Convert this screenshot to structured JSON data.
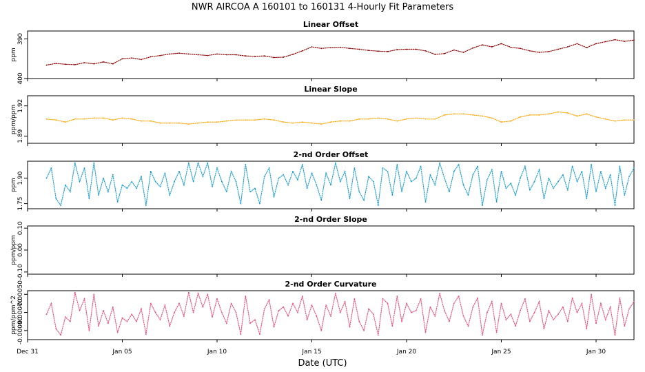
{
  "figure": {
    "title": "NWR   AIRCOA A   160101 to 160131   4-Hourly Fit Parameters",
    "xlabel": "Date (UTC)",
    "xticks": [
      "Dec 31",
      "Jan 05",
      "Jan 10",
      "Jan 15",
      "Jan 20",
      "Jan 25",
      "Jan 30"
    ]
  },
  "chart_data": [
    {
      "type": "line",
      "title": "Linear Offset",
      "ylabel": "ppm",
      "yticks": [
        "390",
        "400"
      ],
      "ylim": [
        400,
        388
      ],
      "x_range_days": [
        0,
        32
      ],
      "color": "#8b0000",
      "series": [
        {
          "name": "Linear Offset",
          "x": [
            1.0,
            1.5,
            2.0,
            2.5,
            3.0,
            3.5,
            4.0,
            4.5,
            5.0,
            5.5,
            6.0,
            6.5,
            7.0,
            7.5,
            8.0,
            8.5,
            9.0,
            9.5,
            10.0,
            10.5,
            11.0,
            11.5,
            12.0,
            12.5,
            13.0,
            13.5,
            14.0,
            14.5,
            15.0,
            15.5,
            16.0,
            16.5,
            17.0,
            17.5,
            18.0,
            18.5,
            19.0,
            19.5,
            20.0,
            20.5,
            21.0,
            21.5,
            22.0,
            22.5,
            23.0,
            23.5,
            24.0,
            24.5,
            25.0,
            25.5,
            26.0,
            26.5,
            27.0,
            27.5,
            28.0,
            28.5,
            29.0,
            29.5,
            30.0,
            30.5,
            31.0,
            31.5,
            32.0
          ],
          "values": [
            396.6,
            396.2,
            396.4,
            396.5,
            396.0,
            396.3,
            395.8,
            396.3,
            395.0,
            394.8,
            395.2,
            394.5,
            394.2,
            393.8,
            393.6,
            393.8,
            394.0,
            394.2,
            393.8,
            394.0,
            394.0,
            394.3,
            394.4,
            394.3,
            394.7,
            394.6,
            393.9,
            393.0,
            392.0,
            392.4,
            392.2,
            392.1,
            392.4,
            392.6,
            392.9,
            393.1,
            393.2,
            392.7,
            392.6,
            392.6,
            393.0,
            393.9,
            393.7,
            392.8,
            393.4,
            392.3,
            391.5,
            392.0,
            391.2,
            392.1,
            392.4,
            393.0,
            393.4,
            393.2,
            392.6,
            392.0,
            391.2,
            392.2,
            391.2,
            390.7,
            390.2,
            390.6,
            390.3
          ]
        }
      ]
    },
    {
      "type": "line",
      "title": "Linear Slope",
      "ylabel": "ppm/ppm",
      "yticks": [
        "1.89",
        "1.92"
      ],
      "ylim": [
        1.883,
        1.93
      ],
      "x_range_days": [
        0,
        32
      ],
      "color": "#ffa500",
      "series": [
        {
          "name": "Linear Slope",
          "x": [
            1.0,
            1.5,
            2.0,
            2.5,
            3.0,
            3.5,
            4.0,
            4.5,
            5.0,
            5.5,
            6.0,
            6.5,
            7.0,
            7.5,
            8.0,
            8.5,
            9.0,
            9.5,
            10.0,
            10.5,
            11.0,
            11.5,
            12.0,
            12.5,
            13.0,
            13.5,
            14.0,
            14.5,
            15.0,
            15.5,
            16.0,
            16.5,
            17.0,
            17.5,
            18.0,
            18.5,
            19.0,
            19.5,
            20.0,
            20.5,
            21.0,
            21.5,
            22.0,
            22.5,
            23.0,
            23.5,
            24.0,
            24.5,
            25.0,
            25.5,
            26.0,
            26.5,
            27.0,
            27.5,
            28.0,
            28.5,
            29.0,
            29.5,
            30.0,
            30.5,
            31.0,
            31.5,
            32.0
          ],
          "values": [
            1.907,
            1.906,
            1.904,
            1.907,
            1.907,
            1.908,
            1.908,
            1.906,
            1.908,
            1.907,
            1.905,
            1.905,
            1.903,
            1.903,
            1.903,
            1.902,
            1.903,
            1.904,
            1.904,
            1.905,
            1.906,
            1.906,
            1.906,
            1.907,
            1.906,
            1.904,
            1.903,
            1.904,
            1.903,
            1.902,
            1.904,
            1.905,
            1.905,
            1.907,
            1.907,
            1.908,
            1.907,
            1.905,
            1.907,
            1.908,
            1.907,
            1.907,
            1.911,
            1.912,
            1.912,
            1.911,
            1.91,
            1.908,
            1.904,
            1.905,
            1.909,
            1.911,
            1.911,
            1.912,
            1.914,
            1.913,
            1.91,
            1.912,
            1.909,
            1.907,
            1.905,
            1.906,
            1.906
          ]
        }
      ]
    },
    {
      "type": "line",
      "title": "2-nd Order Offset",
      "ylabel": "ppm",
      "yticks": [
        "1.75",
        "1.90"
      ],
      "ylim": [
        1.72,
        2.0
      ],
      "x_range_days": [
        0,
        32
      ],
      "color": "#1e9fd2",
      "series": [
        {
          "name": "2-nd Order Offset",
          "x": [
            1.0,
            1.25,
            1.5,
            1.75,
            2.0,
            2.25,
            2.5,
            2.75,
            3.0,
            3.25,
            3.5,
            3.75,
            4.0,
            4.25,
            4.5,
            4.75,
            5.0,
            5.25,
            5.5,
            5.75,
            6.0,
            6.25,
            6.5,
            6.75,
            7.0,
            7.25,
            7.5,
            7.75,
            8.0,
            8.25,
            8.5,
            8.75,
            9.0,
            9.25,
            9.5,
            9.75,
            10.0,
            10.25,
            10.5,
            10.75,
            11.0,
            11.25,
            11.5,
            11.75,
            12.0,
            12.25,
            12.5,
            12.75,
            13.0,
            13.25,
            13.5,
            13.75,
            14.0,
            14.25,
            14.5,
            14.75,
            15.0,
            15.25,
            15.5,
            15.75,
            16.0,
            16.25,
            16.5,
            16.75,
            17.0,
            17.25,
            17.5,
            17.75,
            18.0,
            18.25,
            18.5,
            18.75,
            19.0,
            19.25,
            19.5,
            19.75,
            20.0,
            20.25,
            20.5,
            20.75,
            21.0,
            21.25,
            21.5,
            21.75,
            22.0,
            22.25,
            22.5,
            22.75,
            23.0,
            23.25,
            23.5,
            23.75,
            24.0,
            24.25,
            24.5,
            24.75,
            25.0,
            25.25,
            25.5,
            25.75,
            26.0,
            26.25,
            26.5,
            26.75,
            27.0,
            27.25,
            27.5,
            27.75,
            28.0,
            28.25,
            28.5,
            28.75,
            29.0,
            29.25,
            29.5,
            29.75,
            30.0,
            30.25,
            30.5,
            30.75,
            31.0,
            31.25,
            31.5,
            31.75,
            32.0
          ],
          "values": [
            1.9,
            1.96,
            1.78,
            1.74,
            1.86,
            1.82,
            1.99,
            1.88,
            1.96,
            1.78,
            1.99,
            1.8,
            1.9,
            1.82,
            1.92,
            1.76,
            1.86,
            1.84,
            1.88,
            1.84,
            1.91,
            1.74,
            1.94,
            1.88,
            1.85,
            1.93,
            1.8,
            1.88,
            1.94,
            1.86,
            1.99,
            1.88,
            1.99,
            1.91,
            1.99,
            1.85,
            1.96,
            1.88,
            1.82,
            1.94,
            1.88,
            1.75,
            1.98,
            1.82,
            1.84,
            1.75,
            1.91,
            1.96,
            1.79,
            1.9,
            1.92,
            1.86,
            1.94,
            1.89,
            1.98,
            1.84,
            1.93,
            1.86,
            1.77,
            1.93,
            1.86,
            1.99,
            1.88,
            1.94,
            1.78,
            1.96,
            1.82,
            1.77,
            1.91,
            1.88,
            1.74,
            1.96,
            1.94,
            1.8,
            1.98,
            1.82,
            1.94,
            1.88,
            1.9,
            1.97,
            1.76,
            1.92,
            1.86,
            1.99,
            1.9,
            1.82,
            1.94,
            1.98,
            1.86,
            1.8,
            1.92,
            1.97,
            1.74,
            1.89,
            1.95,
            1.76,
            1.94,
            1.84,
            1.87,
            1.8,
            1.9,
            1.97,
            1.83,
            1.88,
            1.95,
            1.78,
            1.9,
            1.84,
            1.88,
            1.92,
            1.83,
            1.97,
            1.88,
            1.94,
            1.78,
            1.98,
            1.82,
            1.94,
            1.84,
            1.92,
            1.74,
            1.97,
            1.8,
            1.91,
            1.96
          ]
        }
      ]
    },
    {
      "type": "line",
      "title": "2-nd Order Slope",
      "ylabel": "ppm/ppm",
      "yticks": [
        "-0.10",
        "0.00",
        "0.10"
      ],
      "ylim": [
        -0.11,
        0.11
      ],
      "x_range_days": [
        0,
        32
      ],
      "color": "#000000",
      "series": []
    },
    {
      "type": "line",
      "title": "2-nd Order Curvature",
      "ylabel": "ppm/ppm^2",
      "yticks": [
        "-0.00090",
        "-0.00070",
        "-0.00050"
      ],
      "ylim": [
        -0.001,
        -0.00046
      ],
      "x_range_days": [
        0,
        32
      ],
      "color": "#e8557a",
      "series": [
        {
          "name": "2-nd Order Curvature",
          "x": [
            1.0,
            1.25,
            1.5,
            1.75,
            2.0,
            2.25,
            2.5,
            2.75,
            3.0,
            3.25,
            3.5,
            3.75,
            4.0,
            4.25,
            4.5,
            4.75,
            5.0,
            5.25,
            5.5,
            5.75,
            6.0,
            6.25,
            6.5,
            6.75,
            7.0,
            7.25,
            7.5,
            7.75,
            8.0,
            8.25,
            8.5,
            8.75,
            9.0,
            9.25,
            9.5,
            9.75,
            10.0,
            10.25,
            10.5,
            10.75,
            11.0,
            11.25,
            11.5,
            11.75,
            12.0,
            12.25,
            12.5,
            12.75,
            13.0,
            13.25,
            13.5,
            13.75,
            14.0,
            14.25,
            14.5,
            14.75,
            15.0,
            15.25,
            15.5,
            15.75,
            16.0,
            16.25,
            16.5,
            16.75,
            17.0,
            17.25,
            17.5,
            17.75,
            18.0,
            18.25,
            18.5,
            18.75,
            19.0,
            19.25,
            19.5,
            19.75,
            20.0,
            20.25,
            20.5,
            20.75,
            21.0,
            21.25,
            21.5,
            21.75,
            22.0,
            22.25,
            22.5,
            22.75,
            23.0,
            23.25,
            23.5,
            23.75,
            24.0,
            24.25,
            24.5,
            24.75,
            25.0,
            25.25,
            25.5,
            25.75,
            26.0,
            26.25,
            26.5,
            26.75,
            27.0,
            27.25,
            27.5,
            27.75,
            28.0,
            28.25,
            28.5,
            28.75,
            29.0,
            29.25,
            29.5,
            29.75,
            30.0,
            30.25,
            30.5,
            30.75,
            31.0,
            31.25,
            31.5,
            31.75,
            32.0
          ],
          "values": [
            -0.00072,
            -0.0006,
            -0.00088,
            -0.00095,
            -0.00075,
            -0.0008,
            -0.00048,
            -0.00068,
            -0.00055,
            -0.0009,
            -0.0005,
            -0.00085,
            -0.00068,
            -0.00082,
            -0.00064,
            -0.00092,
            -0.00076,
            -0.0008,
            -0.00072,
            -0.0008,
            -0.00066,
            -0.00094,
            -0.0006,
            -0.0007,
            -0.00078,
            -0.00062,
            -0.00085,
            -0.0007,
            -0.0006,
            -0.00074,
            -0.00048,
            -0.0007,
            -0.00049,
            -0.00064,
            -0.0005,
            -0.00075,
            -0.00055,
            -0.0007,
            -0.00082,
            -0.0006,
            -0.0007,
            -0.00094,
            -0.00052,
            -0.00082,
            -0.00078,
            -0.00094,
            -0.00066,
            -0.00056,
            -0.00086,
            -0.00068,
            -0.00064,
            -0.00074,
            -0.0006,
            -0.0007,
            -0.00052,
            -0.00078,
            -0.00062,
            -0.00074,
            -0.0009,
            -0.00062,
            -0.00074,
            -0.00049,
            -0.0007,
            -0.00058,
            -0.00086,
            -0.00055,
            -0.0008,
            -0.0009,
            -0.00066,
            -0.00072,
            -0.00095,
            -0.00055,
            -0.0006,
            -0.00085,
            -0.00052,
            -0.0008,
            -0.0006,
            -0.0007,
            -0.00068,
            -0.00055,
            -0.00092,
            -0.00064,
            -0.00074,
            -0.00049,
            -0.00068,
            -0.0008,
            -0.0006,
            -0.00052,
            -0.00074,
            -0.00085,
            -0.00064,
            -0.00054,
            -0.00095,
            -0.0007,
            -0.00058,
            -0.00092,
            -0.0006,
            -0.00078,
            -0.00072,
            -0.00085,
            -0.00068,
            -0.00055,
            -0.0008,
            -0.0007,
            -0.00058,
            -0.00088,
            -0.00068,
            -0.00078,
            -0.00072,
            -0.00064,
            -0.0008,
            -0.00054,
            -0.0007,
            -0.0006,
            -0.00088,
            -0.0005,
            -0.00082,
            -0.0006,
            -0.00078,
            -0.00064,
            -0.00095,
            -0.00054,
            -0.00085,
            -0.00066,
            -0.00058
          ]
        }
      ]
    }
  ]
}
